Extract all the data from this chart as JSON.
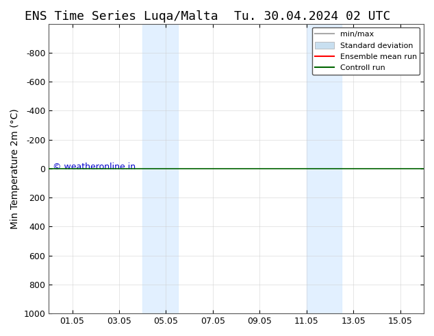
{
  "title_left": "ENS Time Series Luqa/Malta",
  "title_right": "Tu. 30.04.2024 02 UTC",
  "ylabel": "Min Temperature 2m (°C)",
  "xlabel": "",
  "xtick_labels": [
    "01.05",
    "03.05",
    "05.05",
    "07.05",
    "09.05",
    "11.05",
    "13.05",
    "15.05"
  ],
  "xtick_positions": [
    1,
    3,
    5,
    7,
    9,
    11,
    13,
    15
  ],
  "xlim": [
    0,
    16
  ],
  "ylim": [
    -1000,
    1000
  ],
  "ytick_positions": [
    -800,
    -600,
    -400,
    -200,
    0,
    200,
    400,
    600,
    800,
    1000
  ],
  "ytick_labels": [
    "-800",
    "-600",
    "-400",
    "-200",
    "0",
    "200",
    "400",
    "600",
    "800",
    "1000"
  ],
  "horizontal_line_y": 0,
  "horizontal_line_color": "#006400",
  "shaded_regions": [
    {
      "x_start": 4.0,
      "x_end": 5.5,
      "color": "#ddeeff",
      "alpha": 0.85
    },
    {
      "x_start": 11.0,
      "x_end": 12.5,
      "color": "#ddeeff",
      "alpha": 0.85
    }
  ],
  "copyright_text": "© weatheronline.in",
  "copyright_color": "#0000cc",
  "background_color": "#ffffff",
  "grid_color": "#cccccc",
  "legend_entries": [
    {
      "label": "min/max",
      "color": "#aaaaaa",
      "lw": 1.5,
      "style": "solid"
    },
    {
      "label": "Standard deviation",
      "color": "#c8dff0",
      "lw": 6,
      "style": "solid"
    },
    {
      "label": "Ensemble mean run",
      "color": "#ff0000",
      "lw": 1.5,
      "style": "solid"
    },
    {
      "label": "Controll run",
      "color": "#006400",
      "lw": 1.5,
      "style": "solid"
    }
  ],
  "title_fontsize": 13,
  "axis_fontsize": 10,
  "tick_fontsize": 9
}
